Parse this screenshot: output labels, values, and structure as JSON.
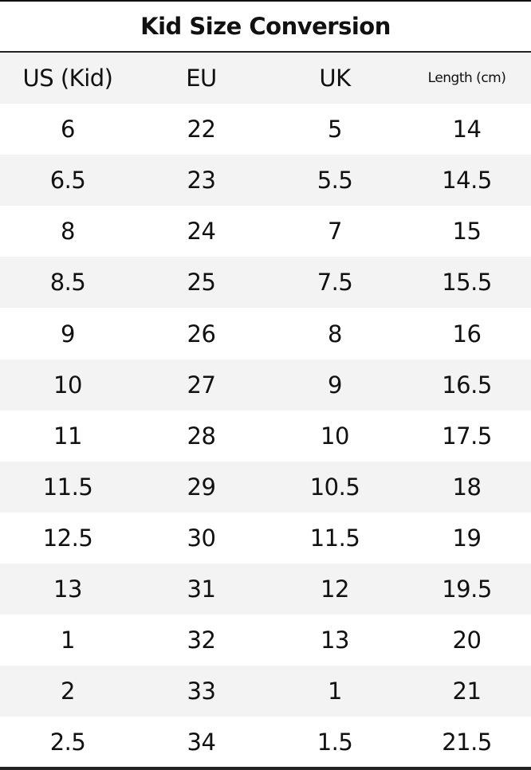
{
  "title": "Kid Size Conversion",
  "headers": [
    "US (Kid)",
    "EU",
    "UK",
    "Length (cm)"
  ],
  "rows": [
    [
      "6",
      "22",
      "5",
      "14"
    ],
    [
      "6.5",
      "23",
      "5.5",
      "14.5"
    ],
    [
      "8",
      "24",
      "7",
      "15"
    ],
    [
      "8.5",
      "25",
      "7.5",
      "15.5"
    ],
    [
      "9",
      "26",
      "8",
      "16"
    ],
    [
      "10",
      "27",
      "9",
      "16.5"
    ],
    [
      "11",
      "28",
      "10",
      "17.5"
    ],
    [
      "11.5",
      "29",
      "10.5",
      "18"
    ],
    [
      "12.5",
      "30",
      "11.5",
      "19"
    ],
    [
      "13",
      "31",
      "12",
      "19.5"
    ],
    [
      "1",
      "32",
      "13",
      "20"
    ],
    [
      "2",
      "33",
      "1",
      "21"
    ],
    [
      "2.5",
      "34",
      "1.5",
      "21.5"
    ]
  ]
}
